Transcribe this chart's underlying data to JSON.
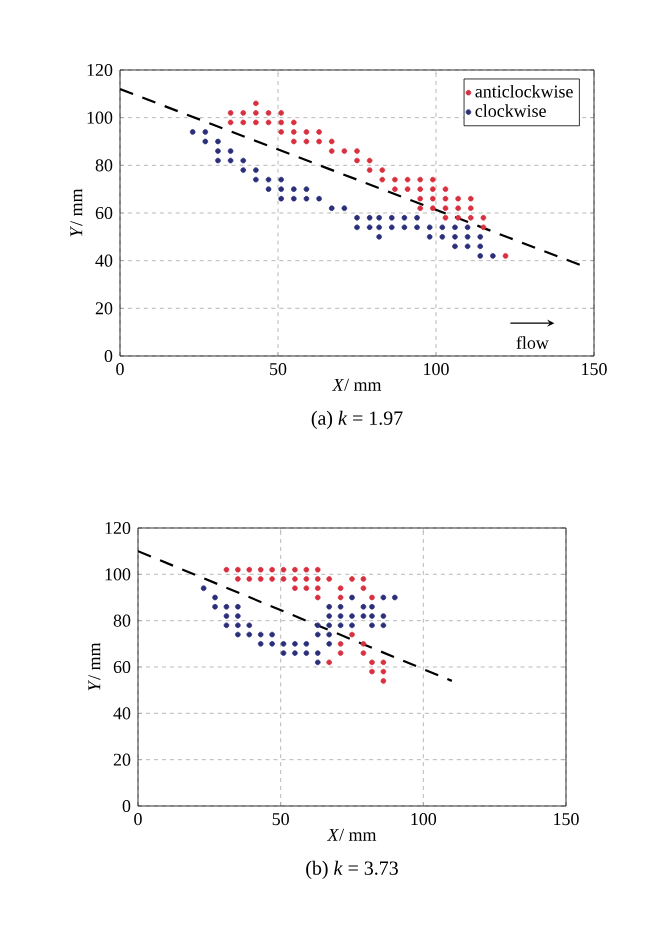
{
  "chart_data": [
    {
      "type": "scatter",
      "title": "(a) *k* = 1.97",
      "xlabel": "*X*/ mm",
      "ylabel": "*Y*/ mm",
      "xlim": [
        0,
        150
      ],
      "ylim": [
        0,
        120
      ],
      "xticks": [
        0,
        50,
        100,
        150
      ],
      "yticks": [
        0,
        20,
        40,
        60,
        80,
        100,
        120
      ],
      "grid": true,
      "legend": "top right",
      "annotations": [
        "flow"
      ],
      "series": [
        {
          "name": "anticlockwise",
          "color": "#d9303f",
          "marker": "circle",
          "x": [
            35,
            35,
            39,
            39,
            43,
            43,
            43,
            47,
            47,
            51,
            51,
            51,
            55,
            55,
            55,
            59,
            59,
            63,
            63,
            67,
            67,
            71,
            75,
            75,
            79,
            79,
            83,
            83,
            87,
            87,
            91,
            91,
            95,
            95,
            95,
            95,
            99,
            99,
            99,
            99,
            103,
            103,
            103,
            103,
            107,
            107,
            107,
            111,
            111,
            111,
            115,
            115,
            122
          ],
          "values": [
            98,
            102,
            98,
            102,
            98,
            102,
            106,
            98,
            102,
            94,
            98,
            102,
            90,
            94,
            98,
            90,
            94,
            90,
            94,
            86,
            90,
            86,
            82,
            86,
            78,
            82,
            74,
            78,
            70,
            74,
            70,
            74,
            62,
            66,
            70,
            74,
            62,
            66,
            70,
            74,
            58,
            62,
            66,
            70,
            58,
            62,
            66,
            58,
            62,
            66,
            54,
            58,
            42
          ]
        },
        {
          "name": "clockwise",
          "color": "#2b2f7a",
          "marker": "circle",
          "x": [
            23,
            27,
            27,
            31,
            31,
            31,
            35,
            35,
            39,
            39,
            43,
            43,
            47,
            47,
            51,
            51,
            51,
            55,
            55,
            59,
            59,
            63,
            67,
            71,
            75,
            75,
            79,
            79,
            82,
            82,
            82,
            86,
            86,
            90,
            90,
            94,
            94,
            98,
            98,
            102,
            102,
            106,
            106,
            106,
            110,
            110,
            110,
            114,
            114,
            114,
            118
          ],
          "values": [
            94,
            90,
            94,
            82,
            86,
            90,
            82,
            86,
            78,
            82,
            74,
            78,
            70,
            74,
            66,
            70,
            74,
            66,
            70,
            66,
            70,
            66,
            62,
            62,
            54,
            58,
            54,
            58,
            50,
            54,
            58,
            54,
            58,
            54,
            58,
            54,
            58,
            50,
            54,
            50,
            54,
            46,
            50,
            54,
            46,
            50,
            54,
            42,
            46,
            50,
            42
          ]
        },
        {
          "type": "line",
          "color": "#000000",
          "line_style": "dashed",
          "marker": "none",
          "x": [
            0,
            148
          ],
          "values": [
            112,
            37
          ]
        }
      ]
    },
    {
      "type": "scatter",
      "title": "(b) *k* = 3.73",
      "xlabel": "*X*/ mm",
      "ylabel": "*Y*/ mm",
      "xlim": [
        0,
        150
      ],
      "ylim": [
        0,
        120
      ],
      "xticks": [
        0,
        50,
        100,
        150
      ],
      "yticks": [
        0,
        20,
        40,
        60,
        80,
        100,
        120
      ],
      "grid": true,
      "series": [
        {
          "color": "#d9303f",
          "marker": "circle",
          "x": [
            31,
            35,
            39,
            43,
            47,
            51,
            55,
            59,
            63,
            35,
            39,
            43,
            47,
            51,
            55,
            59,
            63,
            67,
            75,
            79,
            55,
            59,
            63,
            71,
            79,
            63,
            71,
            82,
            75,
            71,
            71,
            67,
            79,
            79,
            82,
            82,
            86,
            86,
            86
          ],
          "values": [
            102,
            102,
            102,
            102,
            102,
            102,
            102,
            102,
            102,
            98,
            98,
            98,
            98,
            98,
            98,
            98,
            98,
            98,
            98,
            98,
            94,
            94,
            94,
            94,
            94,
            90,
            90,
            90,
            74,
            70,
            66,
            62,
            70,
            66,
            62,
            58,
            58,
            54,
            62
          ]
        },
        {
          "color": "#2b2f7a",
          "marker": "circle",
          "x": [
            23,
            27,
            27,
            31,
            31,
            31,
            35,
            35,
            35,
            35,
            39,
            39,
            43,
            43,
            47,
            47,
            51,
            51,
            55,
            55,
            59,
            59,
            63,
            63,
            63,
            63,
            67,
            67,
            67,
            67,
            67,
            71,
            71,
            71,
            75,
            75,
            75,
            79,
            79,
            82,
            82,
            82,
            86,
            86,
            86,
            90
          ],
          "values": [
            94,
            90,
            86,
            86,
            82,
            78,
            86,
            82,
            78,
            74,
            78,
            74,
            74,
            70,
            74,
            70,
            70,
            66,
            70,
            66,
            70,
            66,
            74,
            66,
            62,
            78,
            78,
            82,
            86,
            74,
            70,
            82,
            78,
            86,
            82,
            78,
            90,
            82,
            86,
            78,
            82,
            86,
            78,
            82,
            90,
            90
          ]
        },
        {
          "type": "line",
          "color": "#000000",
          "line_style": "dashed",
          "marker": "none",
          "x": [
            0,
            110
          ],
          "values": [
            110,
            54
          ]
        }
      ]
    }
  ]
}
